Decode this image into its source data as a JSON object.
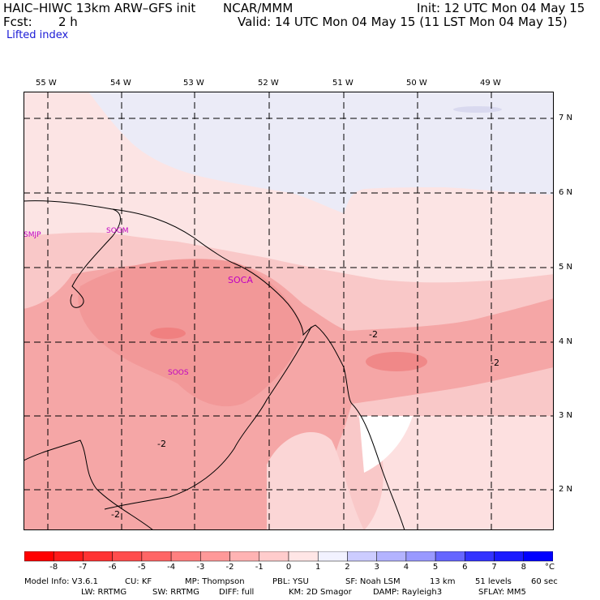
{
  "header": {
    "model": "HAIC–HIWC 13km ARW–GFS init",
    "org": "NCAR/MMM",
    "init": "Init: 12 UTC Mon 04 May 15",
    "fcst_label": "Fcst:",
    "fcst_value": "2 h",
    "valid": "Valid: 14 UTC Mon 04 May 15 (11 LST Mon 04 May 15)",
    "field": "Lifted index"
  },
  "longitude_labels": [
    "55 W",
    "54 W",
    "53 W",
    "52 W",
    "51 W",
    "50 W",
    "49 W"
  ],
  "latitude_labels": [
    "7 N",
    "6 N",
    "5 N",
    "4 N",
    "3 N",
    "2 N"
  ],
  "stations": [
    "SMJP",
    "SOGM",
    "SOCA",
    "SOOS"
  ],
  "contour_labels": [
    "-2",
    "-2",
    "-2",
    "-2"
  ],
  "colorbar": {
    "labels": [
      "-8",
      "-7",
      "-6",
      "-5",
      "-4",
      "-3",
      "-2",
      "-1",
      "0",
      "1",
      "2",
      "3",
      "4",
      "5",
      "6",
      "7",
      "8"
    ],
    "unit": "°C",
    "colors": [
      "#ff0000",
      "#ff1a1a",
      "#ff3333",
      "#ff4d4d",
      "#ff6666",
      "#ff8080",
      "#ff9999",
      "#ffb3b3",
      "#ffcccc",
      "#ffe6e6",
      "#f2f2ff",
      "#ccccff",
      "#b3b3ff",
      "#9999ff",
      "#6666ff",
      "#3333ff",
      "#1a1aff",
      "#0000ff"
    ]
  },
  "model_info": {
    "line1": [
      "Model Info: V3.6.1",
      "CU: KF",
      "MP: Thompson",
      "PBL: YSU",
      "SF: Noah LSM",
      "13 km",
      "51 levels",
      "60 sec"
    ],
    "line2": [
      "LW: RRTMG",
      "SW: RRTMG",
      "DIFF: full",
      "KM: 2D Smagor",
      "DAMP: Rayleigh3",
      "SFLAY: MM5"
    ]
  },
  "map_colors": {
    "ocean_north": "#ebebf7",
    "light_pink": "#fce4e4",
    "mid_pink": "#f9c8c8",
    "deep_pink": "#f5a6a6",
    "interior_red": "#f29898",
    "white_area": "#ffffff"
  }
}
